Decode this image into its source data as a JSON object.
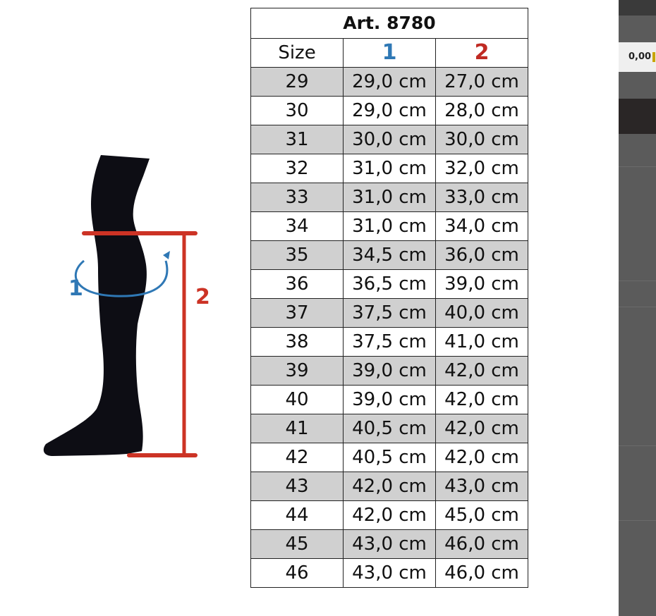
{
  "table": {
    "title": "Art. 8780",
    "headers": [
      "Size",
      "1",
      "2"
    ],
    "rows": [
      [
        "29",
        "29,0 cm",
        "27,0 cm"
      ],
      [
        "30",
        "29,0 cm",
        "28,0 cm"
      ],
      [
        "31",
        "30,0 cm",
        "30,0 cm"
      ],
      [
        "32",
        "31,0 cm",
        "32,0 cm"
      ],
      [
        "33",
        "31,0 cm",
        "33,0 cm"
      ],
      [
        "34",
        "31,0 cm",
        "34,0 cm"
      ],
      [
        "35",
        "34,5 cm",
        "36,0 cm"
      ],
      [
        "36",
        "36,5 cm",
        "39,0 cm"
      ],
      [
        "37",
        "37,5 cm",
        "40,0 cm"
      ],
      [
        "38",
        "37,5 cm",
        "41,0 cm"
      ],
      [
        "39",
        "39,0 cm",
        "42,0 cm"
      ],
      [
        "40",
        "39,0 cm",
        "42,0 cm"
      ],
      [
        "41",
        "40,5 cm",
        "42,0 cm"
      ],
      [
        "42",
        "40,5 cm",
        "42,0 cm"
      ],
      [
        "43",
        "42,0 cm",
        "43,0 cm"
      ],
      [
        "44",
        "42,0 cm",
        "45,0 cm"
      ],
      [
        "45",
        "43,0 cm",
        "46,0 cm"
      ],
      [
        "46",
        "43,0 cm",
        "46,0 cm"
      ]
    ]
  },
  "illustration": {
    "label_circumference": "1",
    "label_height": "2"
  },
  "sidebar": {
    "price": "0,00"
  },
  "colors": {
    "measure_1": "#2f78b5",
    "measure_2": "#cc3325",
    "leg": "#0d0d14",
    "row_shade": "#d0d0d0"
  }
}
